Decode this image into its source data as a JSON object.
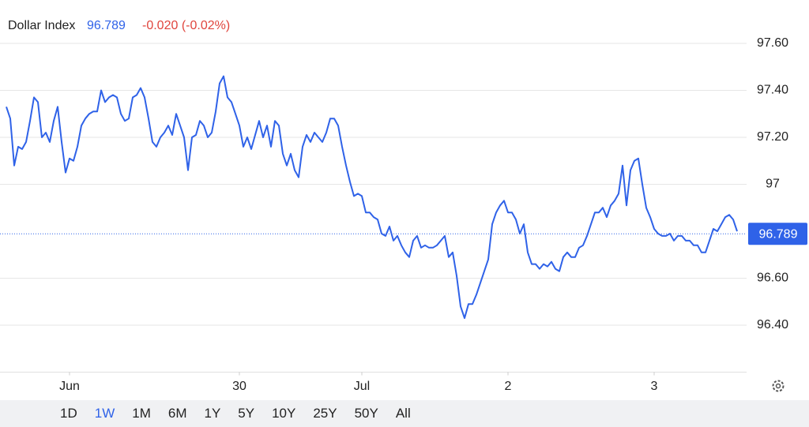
{
  "chart_data": {
    "type": "line",
    "title": "Dollar Index",
    "last_value": 96.789,
    "change": "-0.020 (-0.02%)",
    "series": [
      {
        "name": "Dollar Index",
        "color": "#2f62e8",
        "values": [
          97.33,
          97.28,
          97.08,
          97.16,
          97.15,
          97.18,
          97.27,
          97.37,
          97.35,
          97.2,
          97.22,
          97.18,
          97.27,
          97.33,
          97.18,
          97.05,
          97.11,
          97.1,
          97.16,
          97.25,
          97.28,
          97.3,
          97.31,
          97.31,
          97.4,
          97.35,
          97.37,
          97.38,
          97.37,
          97.3,
          97.27,
          97.28,
          97.37,
          97.38,
          97.41,
          97.37,
          97.28,
          97.18,
          97.16,
          97.2,
          97.22,
          97.25,
          97.21,
          97.3,
          97.25,
          97.2,
          97.06,
          97.2,
          97.21,
          97.27,
          97.25,
          97.2,
          97.22,
          97.31,
          97.43,
          97.46,
          97.37,
          97.35,
          97.3,
          97.25,
          97.16,
          97.2,
          97.15,
          97.21,
          97.27,
          97.2,
          97.25,
          97.16,
          97.27,
          97.25,
          97.13,
          97.08,
          97.13,
          97.06,
          97.03,
          97.16,
          97.21,
          97.18,
          97.22,
          97.2,
          97.18,
          97.22,
          97.28,
          97.28,
          97.25,
          97.16,
          97.08,
          97.01,
          96.95,
          96.96,
          96.95,
          96.88,
          96.88,
          96.86,
          96.85,
          96.79,
          96.78,
          96.82,
          96.76,
          96.78,
          96.74,
          96.71,
          96.69,
          96.76,
          96.78,
          96.73,
          96.74,
          96.73,
          96.73,
          96.74,
          96.76,
          96.78,
          96.69,
          96.71,
          96.61,
          96.48,
          96.43,
          96.49,
          96.49,
          96.53,
          96.58,
          96.63,
          96.68,
          96.83,
          96.88,
          96.91,
          96.93,
          96.88,
          96.88,
          96.85,
          96.79,
          96.83,
          96.71,
          96.66,
          96.66,
          96.64,
          96.66,
          96.65,
          96.67,
          96.64,
          96.63,
          96.69,
          96.71,
          96.69,
          96.69,
          96.73,
          96.74,
          96.78,
          96.83,
          96.88,
          96.88,
          96.9,
          96.86,
          96.91,
          96.93,
          96.96,
          97.08,
          96.91,
          97.06,
          97.1,
          97.11,
          97.0,
          96.9,
          96.86,
          96.81,
          96.79,
          96.78,
          96.78,
          96.79,
          96.76,
          96.78,
          96.78,
          96.76,
          96.76,
          96.74,
          96.74,
          96.71,
          96.71,
          96.76,
          96.81,
          96.8,
          96.83,
          96.86,
          96.87,
          96.85,
          96.8
        ]
      }
    ],
    "ylim": [
      96.2,
      97.65
    ],
    "yticks": [
      {
        "value": 97.6,
        "label": "97.60"
      },
      {
        "value": 97.4,
        "label": "97.40"
      },
      {
        "value": 97.2,
        "label": "97.20"
      },
      97,
      {
        "value": 96.6,
        "label": "96.60"
      },
      {
        "value": 96.4,
        "label": "96.40"
      }
    ],
    "xlim": [
      0,
      185
    ],
    "xticks": [
      {
        "value": 16,
        "label": "Jun"
      },
      {
        "value": 59,
        "label": "30"
      },
      {
        "value": 90,
        "label": "Jul"
      },
      {
        "value": 127,
        "label": "2"
      },
      {
        "value": 164,
        "label": "3"
      }
    ],
    "grid": true,
    "ranges": [
      "1D",
      "1W",
      "1M",
      "6M",
      "1Y",
      "5Y",
      "10Y",
      "25Y",
      "50Y",
      "All"
    ],
    "active_range": "1W"
  }
}
